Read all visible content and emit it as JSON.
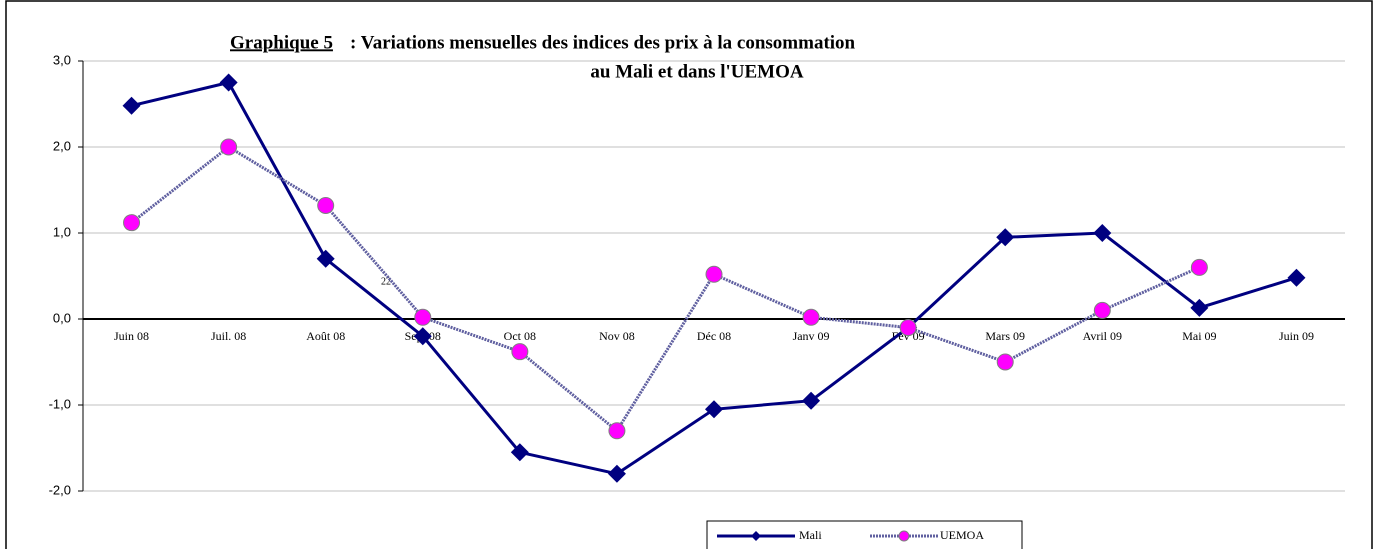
{
  "chart_data": {
    "type": "line",
    "title_label": "Graphique 5",
    "title": [
      ": Variations mensuelles des indices des prix à la consommation",
      "au Mali et dans l'UEMOA"
    ],
    "annotations": [
      "22"
    ],
    "categories": [
      "Juin 08",
      "Juil. 08",
      "Août 08",
      "Sept 08",
      "Oct 08",
      "Nov 08",
      "Déc 08",
      "Janv 09",
      "Fev 09",
      "Mars 09",
      "Avril 09",
      "Mai 09",
      "Juin 09"
    ],
    "series": [
      {
        "name": "Mali",
        "color": "#000080",
        "marker": "diamond",
        "values": [
          2.48,
          2.75,
          0.7,
          -0.2,
          -1.55,
          -1.8,
          -1.05,
          -0.95,
          -0.1,
          0.95,
          1.0,
          0.13,
          0.48
        ]
      },
      {
        "name": "UEMOA",
        "color": "#ff00ff",
        "marker": "circle",
        "values": [
          1.12,
          2.0,
          1.32,
          0.02,
          -0.38,
          -1.3,
          0.52,
          0.02,
          -0.1,
          -0.5,
          0.1,
          0.6,
          null
        ]
      }
    ],
    "ylim": [
      -2,
      3
    ],
    "yticks": [
      {
        "value": -2,
        "label": "-2,0"
      },
      {
        "value": -1,
        "label": "-1,0"
      },
      {
        "value": 0,
        "label": "0,0"
      },
      {
        "value": 1,
        "label": "1,0"
      },
      {
        "value": 2,
        "label": "2,0"
      },
      {
        "value": 3,
        "label": "3,0"
      }
    ],
    "grid": true,
    "legend": "bottom"
  }
}
